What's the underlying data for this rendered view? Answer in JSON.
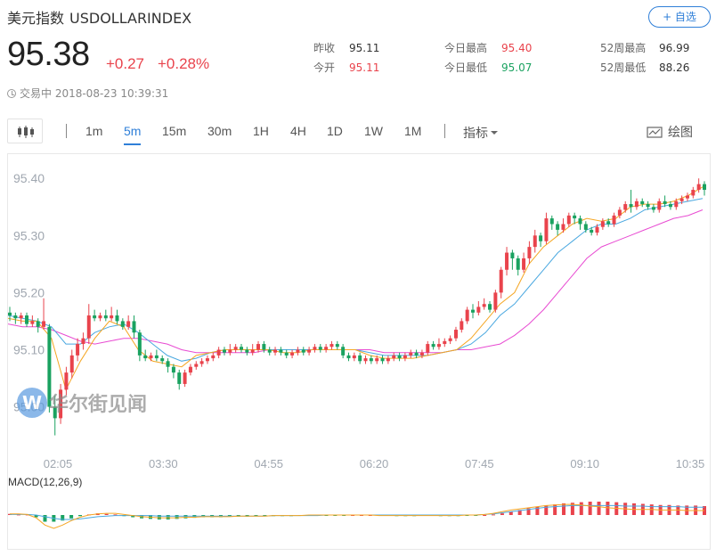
{
  "header": {
    "name": "美元指数",
    "code": "USDOLLARINDEX",
    "follow_label": "+ 自选",
    "price": "95.38",
    "change": "+0.27",
    "change_pct": "+0.28%",
    "status": "交易中 2018-08-23 10:39:31"
  },
  "stats": {
    "prev_close": {
      "label": "昨收",
      "value": "95.11"
    },
    "open": {
      "label": "今开",
      "value": "95.11"
    },
    "day_high": {
      "label": "今日最高",
      "value": "95.40"
    },
    "day_low": {
      "label": "今日最低",
      "value": "95.07"
    },
    "week52_high": {
      "label": "52周最高",
      "value": "96.99"
    },
    "week52_low": {
      "label": "52周最低",
      "value": "88.26"
    }
  },
  "toolbar": {
    "periods": [
      "1m",
      "5m",
      "15m",
      "30m",
      "1H",
      "4H",
      "1D",
      "1W",
      "1M"
    ],
    "active_period": "5m",
    "indicator_label": "指标",
    "draw_label": "绘图"
  },
  "watermark": "华尔街见闻",
  "colors": {
    "up": "#e9434c",
    "down": "#1aa260",
    "accent": "#2f7fd8",
    "ma_short": "#f5a623",
    "ma_mid": "#4aa8e0",
    "ma_long": "#e84bd2"
  },
  "chart_data": {
    "type": "candlestick",
    "x_ticks": [
      "02:05",
      "03:30",
      "04:55",
      "06:20",
      "07:45",
      "09:10",
      "10:35"
    ],
    "y_ticks": [
      95.4,
      95.3,
      95.2,
      95.1,
      95.0
    ],
    "ylim": [
      94.94,
      95.43
    ],
    "candles": [
      [
        95.165,
        95.16,
        95.175,
        95.15
      ],
      [
        95.16,
        95.155,
        95.165,
        95.145
      ],
      [
        95.155,
        95.16,
        95.165,
        95.145
      ],
      [
        95.16,
        95.145,
        95.165,
        95.14
      ],
      [
        95.145,
        95.15,
        95.16,
        95.14
      ],
      [
        95.15,
        95.14,
        95.155,
        95.13
      ],
      [
        95.14,
        95.15,
        95.19,
        95.135
      ],
      [
        95.14,
        95.0,
        95.145,
        94.99
      ],
      [
        95.0,
        94.98,
        95.02,
        94.95
      ],
      [
        94.98,
        95.03,
        95.04,
        94.97
      ],
      [
        95.03,
        95.06,
        95.07,
        95.02
      ],
      [
        95.06,
        95.09,
        95.1,
        95.05
      ],
      [
        95.09,
        95.11,
        95.12,
        95.08
      ],
      [
        95.11,
        95.12,
        95.13,
        95.1
      ],
      [
        95.12,
        95.16,
        95.18,
        95.11
      ],
      [
        95.16,
        95.155,
        95.17,
        95.15
      ],
      [
        95.155,
        95.16,
        95.165,
        95.15
      ],
      [
        95.16,
        95.155,
        95.17,
        95.15
      ],
      [
        95.155,
        95.16,
        95.175,
        95.15
      ],
      [
        95.16,
        95.15,
        95.17,
        95.145
      ],
      [
        95.15,
        95.14,
        95.155,
        95.135
      ],
      [
        95.14,
        95.15,
        95.16,
        95.135
      ],
      [
        95.15,
        95.13,
        95.16,
        95.12
      ],
      [
        95.13,
        95.09,
        95.135,
        95.08
      ],
      [
        95.09,
        95.085,
        95.1,
        95.08
      ],
      [
        95.085,
        95.09,
        95.095,
        95.08
      ],
      [
        95.09,
        95.085,
        95.1,
        95.08
      ],
      [
        95.085,
        95.08,
        95.09,
        95.075
      ],
      [
        95.08,
        95.07,
        95.085,
        95.06
      ],
      [
        95.07,
        95.06,
        95.075,
        95.05
      ],
      [
        95.06,
        95.04,
        95.065,
        95.03
      ],
      [
        95.04,
        95.06,
        95.065,
        95.035
      ],
      [
        95.06,
        95.07,
        95.075,
        95.055
      ],
      [
        95.07,
        95.075,
        95.08,
        95.065
      ],
      [
        95.075,
        95.08,
        95.085,
        95.07
      ],
      [
        95.08,
        95.085,
        95.09,
        95.075
      ],
      [
        95.085,
        95.09,
        95.095,
        95.08
      ],
      [
        95.09,
        95.1,
        95.105,
        95.085
      ],
      [
        95.1,
        95.095,
        95.105,
        95.09
      ],
      [
        95.095,
        95.1,
        95.11,
        95.09
      ],
      [
        95.1,
        95.105,
        95.11,
        95.095
      ],
      [
        95.105,
        95.1,
        95.11,
        95.095
      ],
      [
        95.1,
        95.095,
        95.105,
        95.09
      ],
      [
        95.095,
        95.1,
        95.11,
        95.09
      ],
      [
        95.1,
        95.11,
        95.115,
        95.095
      ],
      [
        95.11,
        95.1,
        95.115,
        95.095
      ],
      [
        95.1,
        95.095,
        95.105,
        95.09
      ],
      [
        95.095,
        95.1,
        95.105,
        95.09
      ],
      [
        95.1,
        95.095,
        95.105,
        95.09
      ],
      [
        95.095,
        95.09,
        95.1,
        95.085
      ],
      [
        95.09,
        95.095,
        95.1,
        95.085
      ],
      [
        95.095,
        95.1,
        95.105,
        95.09
      ],
      [
        95.1,
        95.095,
        95.105,
        95.09
      ],
      [
        95.095,
        95.1,
        95.105,
        95.09
      ],
      [
        95.1,
        95.105,
        95.11,
        95.095
      ],
      [
        95.105,
        95.1,
        95.11,
        95.095
      ],
      [
        95.1,
        95.105,
        95.11,
        95.095
      ],
      [
        95.105,
        95.11,
        95.115,
        95.1
      ],
      [
        95.11,
        95.105,
        95.115,
        95.1
      ],
      [
        95.105,
        95.09,
        95.11,
        95.085
      ],
      [
        95.09,
        95.085,
        95.095,
        95.08
      ],
      [
        95.085,
        95.09,
        95.095,
        95.08
      ],
      [
        95.09,
        95.08,
        95.095,
        95.075
      ],
      [
        95.08,
        95.085,
        95.09,
        95.075
      ],
      [
        95.085,
        95.08,
        95.09,
        95.075
      ],
      [
        95.08,
        95.085,
        95.09,
        95.075
      ],
      [
        95.085,
        95.08,
        95.09,
        95.075
      ],
      [
        95.08,
        95.085,
        95.09,
        95.075
      ],
      [
        95.085,
        95.09,
        95.095,
        95.08
      ],
      [
        95.09,
        95.085,
        95.095,
        95.08
      ],
      [
        95.085,
        95.09,
        95.095,
        95.08
      ],
      [
        95.09,
        95.095,
        95.1,
        95.085
      ],
      [
        95.095,
        95.09,
        95.1,
        95.085
      ],
      [
        95.09,
        95.095,
        95.1,
        95.085
      ],
      [
        95.095,
        95.11,
        95.115,
        95.09
      ],
      [
        95.11,
        95.105,
        95.115,
        95.1
      ],
      [
        95.105,
        95.11,
        95.12,
        95.1
      ],
      [
        95.11,
        95.115,
        95.12,
        95.105
      ],
      [
        95.115,
        95.12,
        95.125,
        95.11
      ],
      [
        95.12,
        95.135,
        95.14,
        95.115
      ],
      [
        95.135,
        95.15,
        95.155,
        95.13
      ],
      [
        95.15,
        95.17,
        95.175,
        95.145
      ],
      [
        95.17,
        95.165,
        95.18,
        95.155
      ],
      [
        95.165,
        95.175,
        95.185,
        95.16
      ],
      [
        95.175,
        95.18,
        95.19,
        95.17
      ],
      [
        95.18,
        95.17,
        95.185,
        95.165
      ],
      [
        95.17,
        95.2,
        95.205,
        95.165
      ],
      [
        95.2,
        95.24,
        95.245,
        95.19
      ],
      [
        95.24,
        95.27,
        95.28,
        95.23
      ],
      [
        95.27,
        95.26,
        95.275,
        95.24
      ],
      [
        95.26,
        95.24,
        95.265,
        95.23
      ],
      [
        95.24,
        95.26,
        95.27,
        95.235
      ],
      [
        95.26,
        95.28,
        95.29,
        95.25
      ],
      [
        95.28,
        95.3,
        95.31,
        95.27
      ],
      [
        95.3,
        95.29,
        95.305,
        95.28
      ],
      [
        95.29,
        95.33,
        95.34,
        95.285
      ],
      [
        95.33,
        95.32,
        95.335,
        95.31
      ],
      [
        95.32,
        95.31,
        95.325,
        95.3
      ],
      [
        95.31,
        95.32,
        95.33,
        95.305
      ],
      [
        95.32,
        95.335,
        95.34,
        95.315
      ],
      [
        95.335,
        95.33,
        95.34,
        95.32
      ],
      [
        95.33,
        95.32,
        95.335,
        95.31
      ],
      [
        95.32,
        95.31,
        95.325,
        95.305
      ],
      [
        95.31,
        95.305,
        95.315,
        95.3
      ],
      [
        95.305,
        95.315,
        95.32,
        95.3
      ],
      [
        95.315,
        95.325,
        95.33,
        95.31
      ],
      [
        95.325,
        95.32,
        95.33,
        95.315
      ],
      [
        95.32,
        95.335,
        95.34,
        95.315
      ],
      [
        95.335,
        95.345,
        95.35,
        95.33
      ],
      [
        95.345,
        95.355,
        95.36,
        95.34
      ],
      [
        95.355,
        95.35,
        95.38,
        95.34
      ],
      [
        95.35,
        95.36,
        95.365,
        95.345
      ],
      [
        95.36,
        95.355,
        95.365,
        95.35
      ],
      [
        95.355,
        95.35,
        95.36,
        95.345
      ],
      [
        95.35,
        95.345,
        95.355,
        95.34
      ],
      [
        95.345,
        95.36,
        95.365,
        95.34
      ],
      [
        95.36,
        95.355,
        95.37,
        95.35
      ],
      [
        95.355,
        95.35,
        95.36,
        95.345
      ],
      [
        95.35,
        95.36,
        95.365,
        95.345
      ],
      [
        95.36,
        95.365,
        95.37,
        95.355
      ],
      [
        95.365,
        95.37,
        95.375,
        95.36
      ],
      [
        95.37,
        95.38,
        95.385,
        95.365
      ],
      [
        95.38,
        95.39,
        95.4,
        95.375
      ],
      [
        95.39,
        95.38,
        95.395,
        95.37
      ]
    ],
    "ma_short": [
      95.155,
      95.15,
      95.15,
      95.12,
      95.03,
      95.08,
      95.12,
      95.15,
      95.14,
      95.1,
      95.08,
      95.075,
      95.07,
      95.09,
      95.095,
      95.1,
      95.1,
      95.1,
      95.1,
      95.095,
      95.095,
      95.1,
      95.1,
      95.1,
      95.1,
      95.09,
      95.085,
      95.085,
      95.085,
      95.09,
      95.095,
      95.1,
      95.12,
      95.15,
      95.18,
      95.2,
      95.25,
      95.28,
      95.3,
      95.32,
      95.33,
      95.325,
      95.33,
      95.35,
      95.355,
      95.355,
      95.36,
      95.37,
      95.385
    ],
    "ma_mid": [
      95.16,
      95.155,
      95.15,
      95.14,
      95.11,
      95.11,
      95.13,
      95.14,
      95.145,
      95.13,
      95.11,
      95.09,
      95.08,
      95.085,
      95.095,
      95.1,
      95.1,
      95.1,
      95.1,
      95.1,
      95.1,
      95.1,
      95.1,
      95.1,
      95.1,
      95.095,
      95.09,
      95.09,
      95.09,
      95.09,
      95.095,
      95.1,
      95.11,
      95.13,
      95.16,
      95.18,
      95.21,
      95.24,
      95.27,
      95.29,
      95.31,
      95.32,
      95.32,
      95.33,
      95.345,
      95.35,
      95.355,
      95.36,
      95.365
    ],
    "ma_long": [
      95.145,
      95.14,
      95.14,
      95.135,
      95.125,
      95.115,
      95.11,
      95.115,
      95.12,
      95.12,
      95.115,
      95.11,
      95.1,
      95.095,
      95.095,
      95.095,
      95.095,
      95.095,
      95.1,
      95.1,
      95.1,
      95.1,
      95.1,
      95.1,
      95.1,
      95.1,
      95.095,
      95.095,
      95.095,
      95.095,
      95.095,
      95.1,
      95.1,
      95.105,
      95.11,
      95.125,
      95.145,
      95.17,
      95.2,
      95.23,
      95.26,
      95.28,
      95.29,
      95.3,
      95.31,
      95.32,
      95.33,
      95.335,
      95.345
    ],
    "macd": {
      "label": "MACD(12,26,9)",
      "ylim": [
        -0.04,
        0.04
      ],
      "hist": [
        0.002,
        0.001,
        0.001,
        -0.004,
        -0.012,
        -0.012,
        -0.01,
        -0.006,
        -0.002,
        0.001,
        0.003,
        0.002,
        0.001,
        -0.002,
        -0.004,
        -0.006,
        -0.007,
        -0.008,
        -0.008,
        -0.007,
        -0.006,
        -0.005,
        -0.004,
        -0.004,
        -0.004,
        -0.003,
        -0.003,
        -0.003,
        -0.002,
        -0.002,
        -0.002,
        -0.002,
        -0.002,
        -0.001,
        -0.001,
        -0.001,
        -0.001,
        -0.001,
        -0.001,
        0.0,
        0.0,
        0.0,
        -0.001,
        -0.001,
        -0.002,
        -0.002,
        -0.002,
        -0.001,
        -0.001,
        -0.002,
        -0.002,
        -0.002,
        -0.001,
        -0.001,
        0.0,
        0.001,
        0.003,
        0.006,
        0.009,
        0.012,
        0.015,
        0.017,
        0.019,
        0.021,
        0.022,
        0.023,
        0.024,
        0.024,
        0.024,
        0.023,
        0.022,
        0.021,
        0.02,
        0.019,
        0.018,
        0.018,
        0.017,
        0.017,
        0.017,
        0.016
      ],
      "dif": [
        0.002,
        0.002,
        0.001,
        -0.005,
        -0.018,
        -0.024,
        -0.018,
        -0.01,
        -0.004,
        0.0,
        0.002,
        0.003,
        0.003,
        0.001,
        -0.001,
        -0.003,
        -0.004,
        -0.005,
        -0.005,
        -0.005,
        -0.004,
        -0.004,
        -0.003,
        -0.003,
        -0.003,
        -0.003,
        -0.002,
        -0.002,
        -0.002,
        -0.002,
        -0.001,
        -0.001,
        -0.001,
        -0.001,
        0.0,
        0.0,
        0.0,
        0.0,
        0.0,
        0.0,
        0.0,
        0.0,
        -0.001,
        -0.001,
        -0.001,
        -0.001,
        -0.001,
        -0.001,
        -0.001,
        -0.001,
        -0.001,
        -0.001,
        0.0,
        0.0,
        0.001,
        0.003,
        0.006,
        0.009,
        0.011,
        0.013,
        0.015,
        0.017,
        0.018,
        0.019,
        0.019,
        0.018,
        0.016,
        0.015,
        0.013,
        0.012,
        0.011,
        0.01,
        0.01,
        0.01,
        0.009,
        0.009,
        0.009,
        0.008,
        0.008,
        0.008
      ],
      "dea": [
        0.001,
        0.001,
        0.001,
        0.0,
        -0.003,
        -0.006,
        -0.008,
        -0.008,
        -0.007,
        -0.005,
        -0.003,
        -0.002,
        -0.001,
        -0.001,
        -0.001,
        -0.001,
        -0.001,
        -0.002,
        -0.002,
        -0.002,
        -0.002,
        -0.002,
        -0.002,
        -0.002,
        -0.002,
        -0.002,
        -0.002,
        -0.002,
        -0.002,
        -0.002,
        -0.001,
        -0.001,
        -0.001,
        -0.001,
        -0.001,
        -0.001,
        0.0,
        0.0,
        0.0,
        0.0,
        0.0,
        0.0,
        0.0,
        0.0,
        0.0,
        0.0,
        0.0,
        0.0,
        0.0,
        0.0,
        0.0,
        0.0,
        0.0,
        0.0,
        0.001,
        0.002,
        0.004,
        0.006,
        0.008,
        0.01,
        0.012,
        0.014,
        0.015,
        0.016,
        0.017,
        0.017,
        0.017,
        0.017,
        0.017,
        0.017,
        0.016,
        0.016,
        0.016,
        0.015,
        0.015,
        0.015,
        0.015,
        0.014,
        0.014,
        0.014
      ]
    }
  }
}
